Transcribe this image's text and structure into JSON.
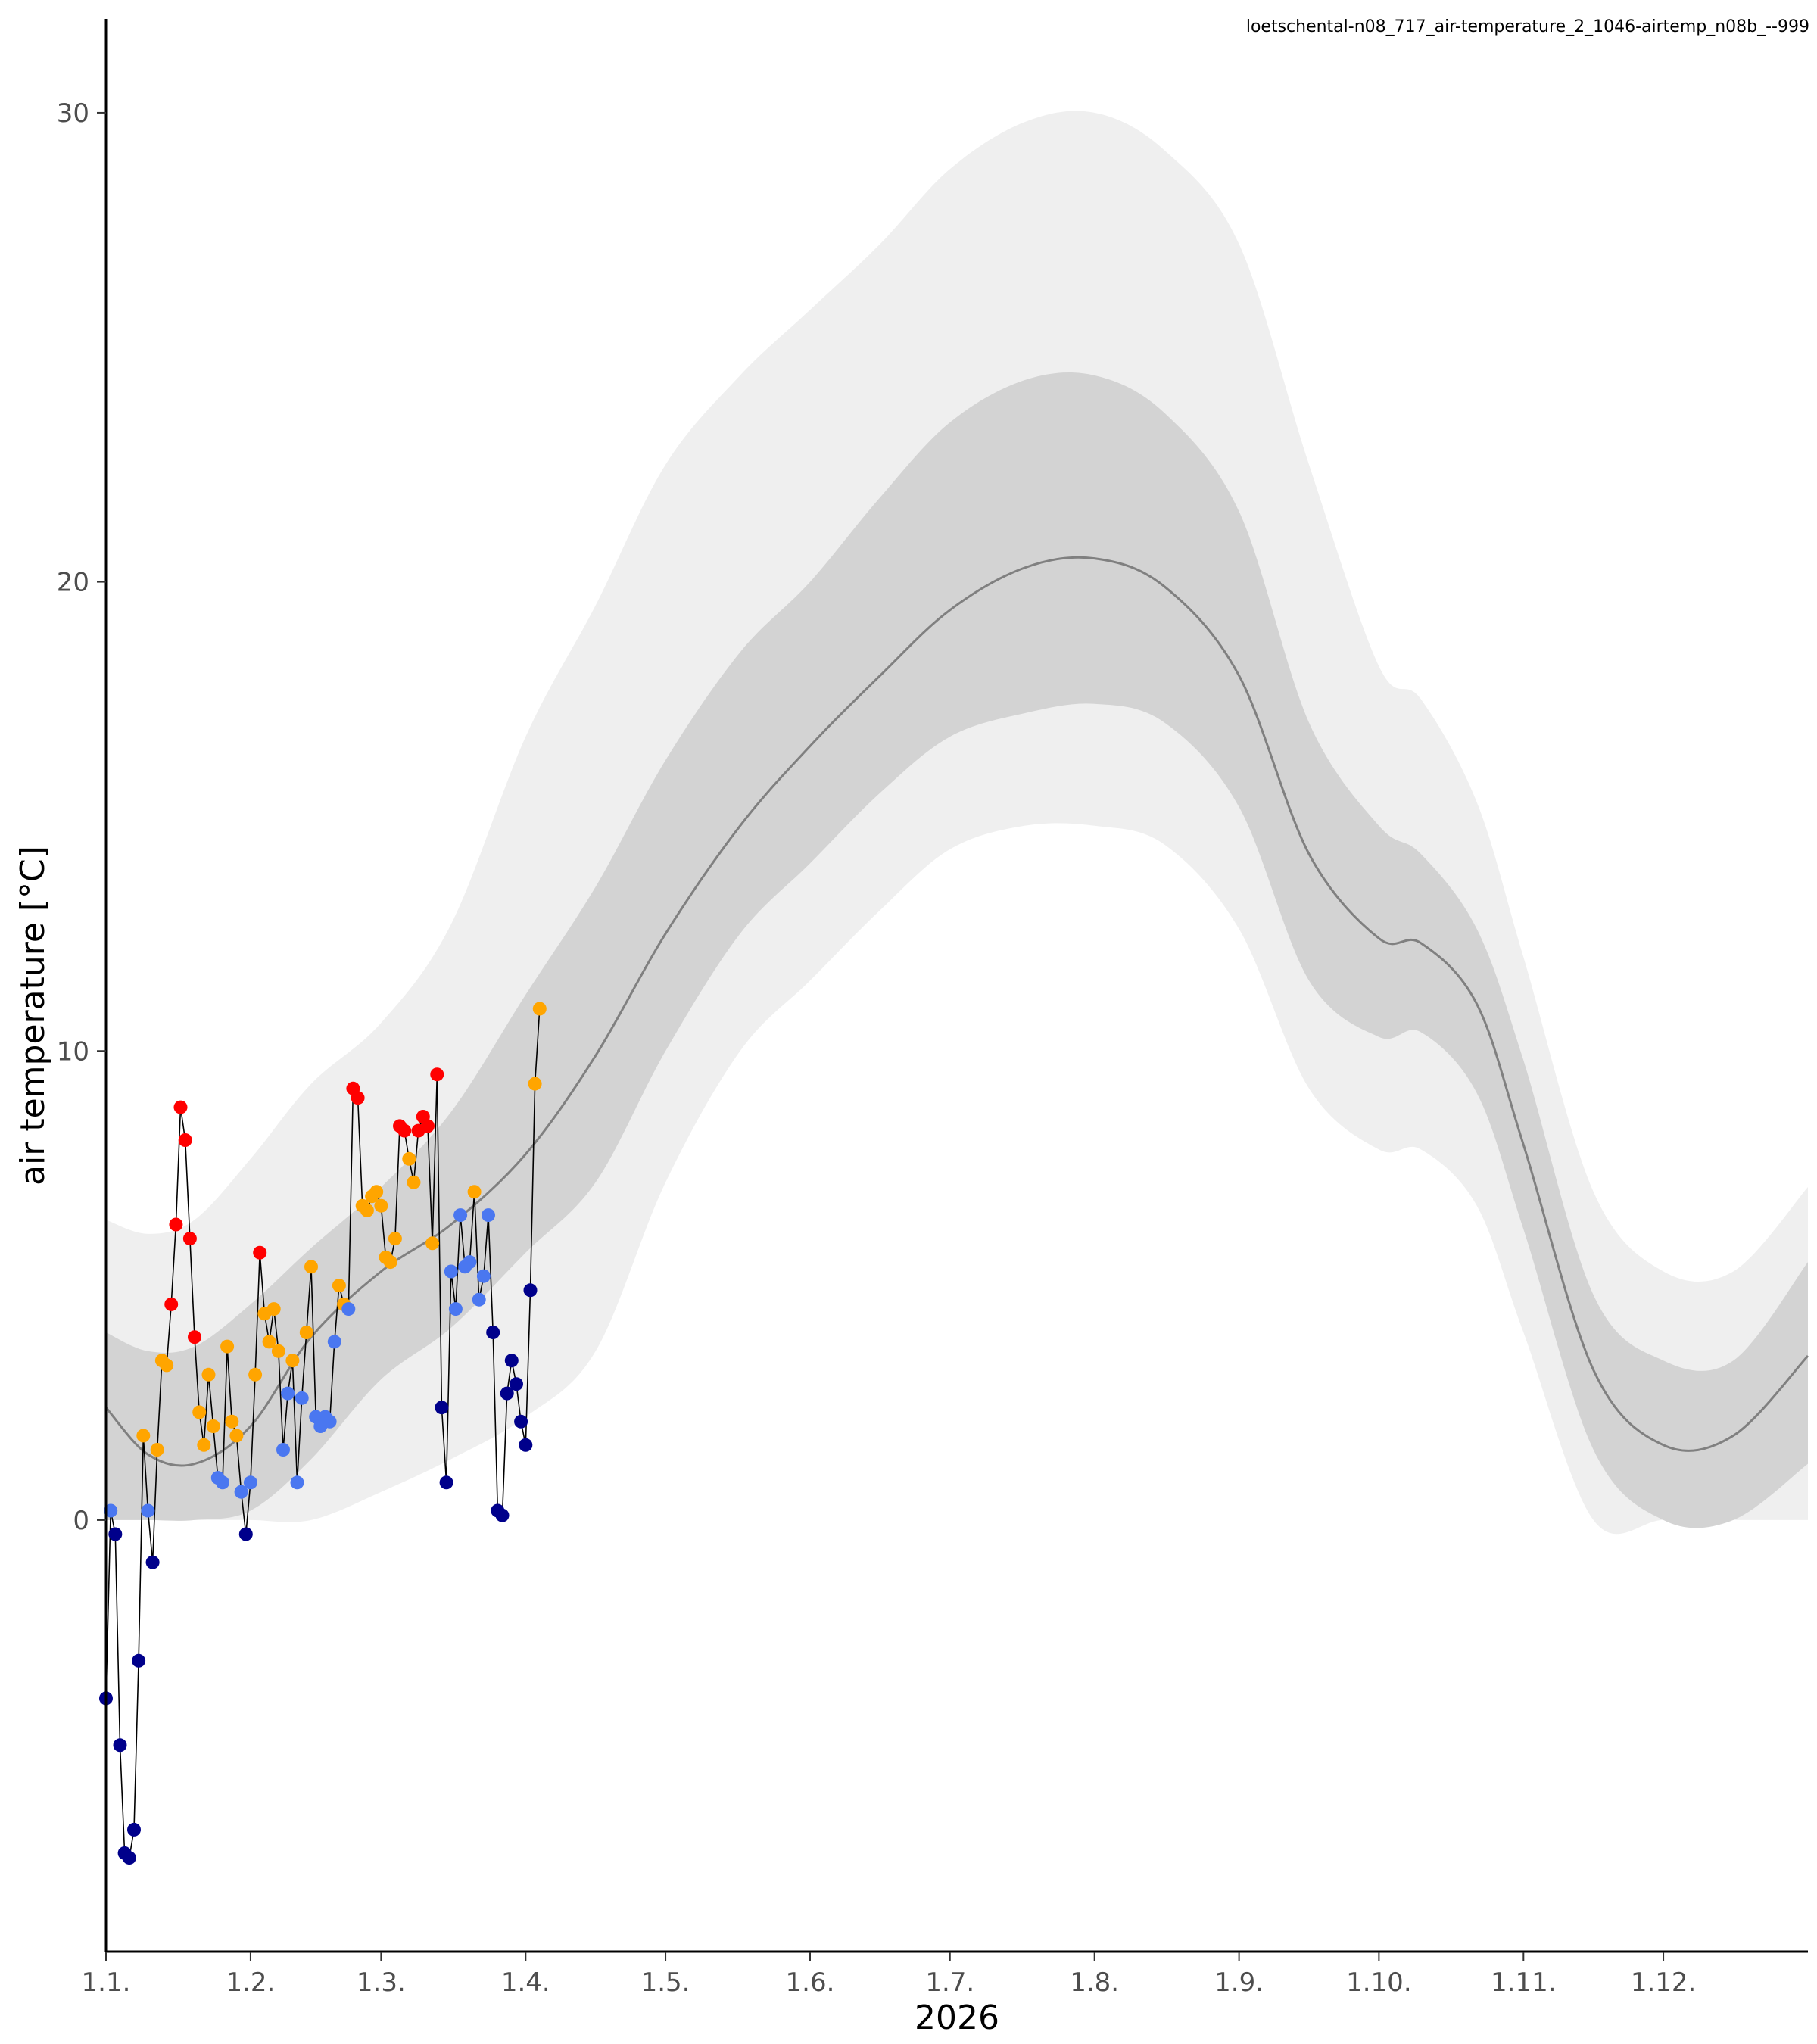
{
  "header": {
    "label": "loetschental-n08_717_air-temperature_2_1046-airtemp_n08b_--999"
  },
  "colors": {
    "band_outer": "#efefef",
    "band_inner": "#d3d3d3",
    "median_line": "#808080",
    "obs_line": "#000000",
    "very_cold": "#00008b",
    "cold": "#4a77f0",
    "warm": "#ffa500",
    "very_warm": "#ff0000"
  },
  "chart_data": {
    "type": "line",
    "title": "",
    "xlabel": "2026",
    "ylabel": "air temperature [°C]",
    "xlim": [
      1,
      366
    ],
    "ylim": [
      -9.2,
      32
    ],
    "x_ticks": [
      {
        "label": "1.1.",
        "day": 1
      },
      {
        "label": "1.2.",
        "day": 32
      },
      {
        "label": "1.3.",
        "day": 60
      },
      {
        "label": "1.4.",
        "day": 91
      },
      {
        "label": "1.5.",
        "day": 121
      },
      {
        "label": "1.6.",
        "day": 152
      },
      {
        "label": "1.7.",
        "day": 182
      },
      {
        "label": "1.8.",
        "day": 213
      },
      {
        "label": "1.9.",
        "day": 244
      },
      {
        "label": "1.10.",
        "day": 274
      },
      {
        "label": "1.11.",
        "day": 305
      },
      {
        "label": "1.12.",
        "day": 335
      }
    ],
    "y_ticks": [
      {
        "label": "0",
        "value": 0
      },
      {
        "label": "10",
        "value": 10
      },
      {
        "label": "20",
        "value": 20
      },
      {
        "label": "30",
        "value": 30
      }
    ],
    "climatology": [
      {
        "day": 1,
        "p5": 0.0,
        "p25": 0.0,
        "p50": 2.4,
        "p75": 4.0,
        "p95": 6.4
      },
      {
        "day": 10,
        "p5": 0.0,
        "p25": 0.0,
        "p50": 1.4,
        "p75": 3.6,
        "p95": 6.1
      },
      {
        "day": 20,
        "p5": 0.0,
        "p25": 0.0,
        "p50": 1.2,
        "p75": 3.7,
        "p95": 6.4
      },
      {
        "day": 32,
        "p5": 0.0,
        "p25": 0.2,
        "p50": 2.0,
        "p75": 4.6,
        "p95": 7.7
      },
      {
        "day": 45,
        "p5": 0.0,
        "p25": 1.3,
        "p50": 3.9,
        "p75": 5.8,
        "p95": 9.3
      },
      {
        "day": 60,
        "p5": 0.6,
        "p25": 3.0,
        "p50": 5.3,
        "p75": 7.1,
        "p95": 10.6
      },
      {
        "day": 75,
        "p5": 1.3,
        "p25": 4.1,
        "p50": 6.3,
        "p75": 8.7,
        "p95": 12.7
      },
      {
        "day": 91,
        "p5": 2.2,
        "p25": 5.7,
        "p50": 7.8,
        "p75": 11.2,
        "p95": 16.7
      },
      {
        "day": 106,
        "p5": 3.6,
        "p25": 7.2,
        "p50": 9.9,
        "p75": 13.5,
        "p95": 19.5
      },
      {
        "day": 121,
        "p5": 7.2,
        "p25": 10.0,
        "p50": 12.5,
        "p75": 16.2,
        "p95": 22.5
      },
      {
        "day": 137,
        "p5": 10.0,
        "p25": 12.5,
        "p50": 14.8,
        "p75": 18.5,
        "p95": 24.4
      },
      {
        "day": 152,
        "p5": 11.5,
        "p25": 14.0,
        "p50": 16.5,
        "p75": 20.0,
        "p95": 25.8
      },
      {
        "day": 167,
        "p5": 13.0,
        "p25": 15.5,
        "p50": 18.0,
        "p75": 21.8,
        "p95": 27.2
      },
      {
        "day": 182,
        "p5": 14.3,
        "p25": 16.7,
        "p50": 19.4,
        "p75": 23.4,
        "p95": 28.8
      },
      {
        "day": 198,
        "p5": 14.8,
        "p25": 17.2,
        "p50": 20.3,
        "p75": 24.3,
        "p95": 29.8
      },
      {
        "day": 213,
        "p5": 14.8,
        "p25": 17.4,
        "p50": 20.5,
        "p75": 24.4,
        "p95": 30.0
      },
      {
        "day": 228,
        "p5": 14.4,
        "p25": 17.0,
        "p50": 19.9,
        "p75": 23.6,
        "p95": 29.2
      },
      {
        "day": 244,
        "p5": 12.6,
        "p25": 15.2,
        "p50": 18.0,
        "p75": 21.5,
        "p95": 27.2
      },
      {
        "day": 259,
        "p5": 9.2,
        "p25": 11.5,
        "p50": 14.2,
        "p75": 17.0,
        "p95": 22.5
      },
      {
        "day": 274,
        "p5": 7.9,
        "p25": 10.3,
        "p50": 12.4,
        "p75": 14.8,
        "p95": 18.2
      },
      {
        "day": 283,
        "p5": 7.9,
        "p25": 10.4,
        "p50": 12.3,
        "p75": 14.2,
        "p95": 17.5
      },
      {
        "day": 295,
        "p5": 6.7,
        "p25": 9.1,
        "p50": 11.0,
        "p75": 12.6,
        "p95": 15.3
      },
      {
        "day": 305,
        "p5": 4.0,
        "p25": 6.2,
        "p50": 8.0,
        "p75": 9.8,
        "p95": 12.0
      },
      {
        "day": 320,
        "p5": 0.0,
        "p25": 1.5,
        "p50": 3.2,
        "p75": 4.8,
        "p95": 7.0
      },
      {
        "day": 335,
        "p5": 0.0,
        "p25": 0.0,
        "p50": 1.6,
        "p75": 3.4,
        "p95": 5.3
      },
      {
        "day": 350,
        "p5": 0.0,
        "p25": 0.0,
        "p50": 1.8,
        "p75": 3.4,
        "p95": 5.3
      },
      {
        "day": 366,
        "p5": 0.0,
        "p25": 1.2,
        "p50": 3.5,
        "p75": 5.5,
        "p95": 7.1
      }
    ],
    "observations": [
      {
        "day": 1,
        "value": -3.8,
        "class": "very_cold"
      },
      {
        "day": 2,
        "value": 0.2,
        "class": "cold"
      },
      {
        "day": 3,
        "value": -0.3,
        "class": "very_cold"
      },
      {
        "day": 4,
        "value": -4.8,
        "class": "very_cold"
      },
      {
        "day": 5,
        "value": -7.1,
        "class": "very_cold"
      },
      {
        "day": 6,
        "value": -7.2,
        "class": "very_cold"
      },
      {
        "day": 7,
        "value": -6.6,
        "class": "very_cold"
      },
      {
        "day": 8,
        "value": -3.0,
        "class": "very_cold"
      },
      {
        "day": 9,
        "value": 1.8,
        "class": "warm"
      },
      {
        "day": 10,
        "value": 0.2,
        "class": "cold"
      },
      {
        "day": 11,
        "value": -0.9,
        "class": "very_cold"
      },
      {
        "day": 12,
        "value": 1.5,
        "class": "warm"
      },
      {
        "day": 13,
        "value": 3.4,
        "class": "warm"
      },
      {
        "day": 14,
        "value": 3.3,
        "class": "warm"
      },
      {
        "day": 15,
        "value": 4.6,
        "class": "very_warm"
      },
      {
        "day": 16,
        "value": 6.3,
        "class": "very_warm"
      },
      {
        "day": 17,
        "value": 8.8,
        "class": "very_warm"
      },
      {
        "day": 18,
        "value": 8.1,
        "class": "very_warm"
      },
      {
        "day": 19,
        "value": 6.0,
        "class": "very_warm"
      },
      {
        "day": 20,
        "value": 3.9,
        "class": "very_warm"
      },
      {
        "day": 21,
        "value": 2.3,
        "class": "warm"
      },
      {
        "day": 22,
        "value": 1.6,
        "class": "warm"
      },
      {
        "day": 23,
        "value": 3.1,
        "class": "warm"
      },
      {
        "day": 24,
        "value": 2.0,
        "class": "warm"
      },
      {
        "day": 25,
        "value": 0.9,
        "class": "cold"
      },
      {
        "day": 26,
        "value": 0.8,
        "class": "cold"
      },
      {
        "day": 27,
        "value": 3.7,
        "class": "warm"
      },
      {
        "day": 28,
        "value": 2.1,
        "class": "warm"
      },
      {
        "day": 29,
        "value": 1.8,
        "class": "warm"
      },
      {
        "day": 30,
        "value": 0.6,
        "class": "cold"
      },
      {
        "day": 31,
        "value": -0.3,
        "class": "very_cold"
      },
      {
        "day": 32,
        "value": 0.8,
        "class": "cold"
      },
      {
        "day": 33,
        "value": 3.1,
        "class": "warm"
      },
      {
        "day": 34,
        "value": 5.7,
        "class": "very_warm"
      },
      {
        "day": 35,
        "value": 4.4,
        "class": "warm"
      },
      {
        "day": 36,
        "value": 3.8,
        "class": "warm"
      },
      {
        "day": 37,
        "value": 4.5,
        "class": "warm"
      },
      {
        "day": 38,
        "value": 3.6,
        "class": "warm"
      },
      {
        "day": 39,
        "value": 1.5,
        "class": "cold"
      },
      {
        "day": 40,
        "value": 2.7,
        "class": "cold"
      },
      {
        "day": 41,
        "value": 3.4,
        "class": "warm"
      },
      {
        "day": 42,
        "value": 0.8,
        "class": "cold"
      },
      {
        "day": 43,
        "value": 2.6,
        "class": "cold"
      },
      {
        "day": 44,
        "value": 4.0,
        "class": "warm"
      },
      {
        "day": 45,
        "value": 5.4,
        "class": "warm"
      },
      {
        "day": 46,
        "value": 2.2,
        "class": "cold"
      },
      {
        "day": 47,
        "value": 2.0,
        "class": "cold"
      },
      {
        "day": 48,
        "value": 2.2,
        "class": "cold"
      },
      {
        "day": 49,
        "value": 2.1,
        "class": "cold"
      },
      {
        "day": 50,
        "value": 3.8,
        "class": "cold"
      },
      {
        "day": 51,
        "value": 5.0,
        "class": "warm"
      },
      {
        "day": 52,
        "value": 4.6,
        "class": "warm"
      },
      {
        "day": 53,
        "value": 4.5,
        "class": "cold"
      },
      {
        "day": 54,
        "value": 9.2,
        "class": "very_warm"
      },
      {
        "day": 55,
        "value": 9.0,
        "class": "very_warm"
      },
      {
        "day": 56,
        "value": 6.7,
        "class": "warm"
      },
      {
        "day": 57,
        "value": 6.6,
        "class": "warm"
      },
      {
        "day": 58,
        "value": 6.9,
        "class": "warm"
      },
      {
        "day": 59,
        "value": 7.0,
        "class": "warm"
      },
      {
        "day": 60,
        "value": 6.7,
        "class": "warm"
      },
      {
        "day": 61,
        "value": 5.6,
        "class": "warm"
      },
      {
        "day": 62,
        "value": 5.5,
        "class": "warm"
      },
      {
        "day": 63,
        "value": 6.0,
        "class": "warm"
      },
      {
        "day": 64,
        "value": 8.4,
        "class": "very_warm"
      },
      {
        "day": 65,
        "value": 8.3,
        "class": "very_warm"
      },
      {
        "day": 66,
        "value": 7.7,
        "class": "warm"
      },
      {
        "day": 67,
        "value": 7.2,
        "class": "warm"
      },
      {
        "day": 68,
        "value": 8.3,
        "class": "very_warm"
      },
      {
        "day": 69,
        "value": 8.6,
        "class": "very_warm"
      },
      {
        "day": 70,
        "value": 8.4,
        "class": "very_warm"
      },
      {
        "day": 71,
        "value": 5.9,
        "class": "warm"
      },
      {
        "day": 72,
        "value": 9.5,
        "class": "very_warm"
      },
      {
        "day": 73,
        "value": 2.4,
        "class": "very_cold"
      },
      {
        "day": 74,
        "value": 0.8,
        "class": "very_cold"
      },
      {
        "day": 75,
        "value": 5.3,
        "class": "cold"
      },
      {
        "day": 76,
        "value": 4.5,
        "class": "cold"
      },
      {
        "day": 77,
        "value": 6.5,
        "class": "cold"
      },
      {
        "day": 78,
        "value": 5.4,
        "class": "cold"
      },
      {
        "day": 79,
        "value": 5.5,
        "class": "cold"
      },
      {
        "day": 80,
        "value": 7.0,
        "class": "warm"
      },
      {
        "day": 81,
        "value": 4.7,
        "class": "cold"
      },
      {
        "day": 82,
        "value": 5.2,
        "class": "cold"
      },
      {
        "day": 83,
        "value": 6.5,
        "class": "cold"
      },
      {
        "day": 84,
        "value": 4.0,
        "class": "very_cold"
      },
      {
        "day": 85,
        "value": 0.2,
        "class": "very_cold"
      },
      {
        "day": 86,
        "value": 0.1,
        "class": "very_cold"
      },
      {
        "day": 87,
        "value": 2.7,
        "class": "very_cold"
      },
      {
        "day": 88,
        "value": 3.4,
        "class": "very_cold"
      },
      {
        "day": 89,
        "value": 2.9,
        "class": "very_cold"
      },
      {
        "day": 90,
        "value": 2.1,
        "class": "very_cold"
      },
      {
        "day": 91,
        "value": 1.6,
        "class": "very_cold"
      },
      {
        "day": 92,
        "value": 4.9,
        "class": "very_cold"
      },
      {
        "day": 93,
        "value": 9.3,
        "class": "warm"
      },
      {
        "day": 94,
        "value": 10.9,
        "class": "warm"
      }
    ]
  }
}
